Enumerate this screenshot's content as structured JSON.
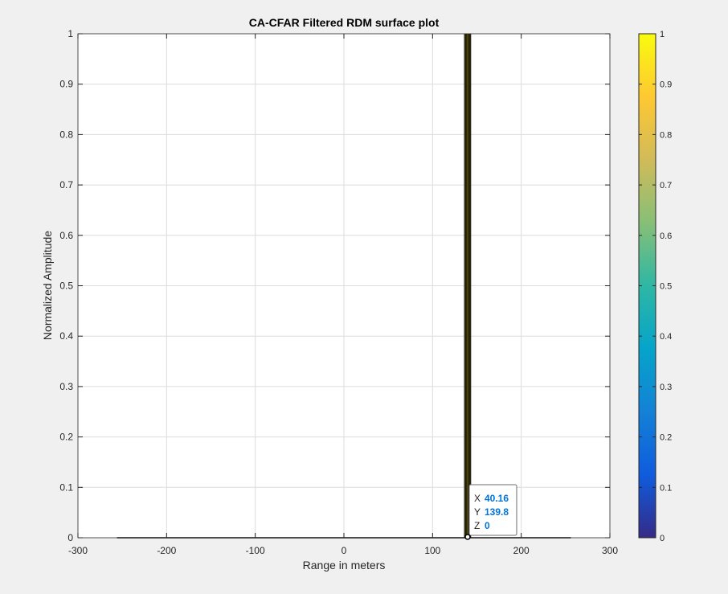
{
  "chart_data": {
    "type": "surface",
    "title": "CA-CFAR Filtered RDM surface plot",
    "xlabel": "Range in meters",
    "ylabel": "Normalized Amplitude",
    "view": "side view (range vs. amplitude)",
    "xlim": [
      -300,
      300
    ],
    "ylim": [
      0,
      1
    ],
    "xticks": [
      -300,
      -200,
      -100,
      0,
      100,
      200,
      300
    ],
    "yticks": [
      0,
      0.1,
      0.2,
      0.3,
      0.4,
      0.5,
      0.6,
      0.7,
      0.8,
      0.9,
      1
    ],
    "grid": true,
    "surface": {
      "baseline_range": [
        -256,
        256
      ],
      "baseline_value": 0,
      "peak_range": [
        136,
        143
      ],
      "peak_value": 1,
      "peak_edges_x": [
        136,
        137.2,
        138.4,
        139.6,
        140.8,
        142,
        143
      ]
    },
    "colorbar": {
      "min": 0,
      "max": 1,
      "ticks": [
        0,
        0.1,
        0.2,
        0.3,
        0.4,
        0.5,
        0.6,
        0.7,
        0.8,
        0.9,
        1
      ],
      "colormap": "parula",
      "colors": [
        "#352a87",
        "#0f5cdd",
        "#1481d6",
        "#06a4ca",
        "#2eb7a4",
        "#87bf77",
        "#d1bb59",
        "#fec832",
        "#f9fb0e"
      ]
    },
    "datatip": {
      "x_label": "X",
      "x_value": "40.16",
      "y_label": "Y",
      "y_value": "139.8",
      "z_label": "Z",
      "z_value": "0"
    },
    "colors": {
      "axes_bg": "#ffffff",
      "figure_bg": "#f0f0f0",
      "grid": "#dcdcdc",
      "axis": "#262626",
      "surface_edge": "#000000",
      "surface_face": "#d9c931",
      "datatip_value": "#0072d9"
    }
  }
}
